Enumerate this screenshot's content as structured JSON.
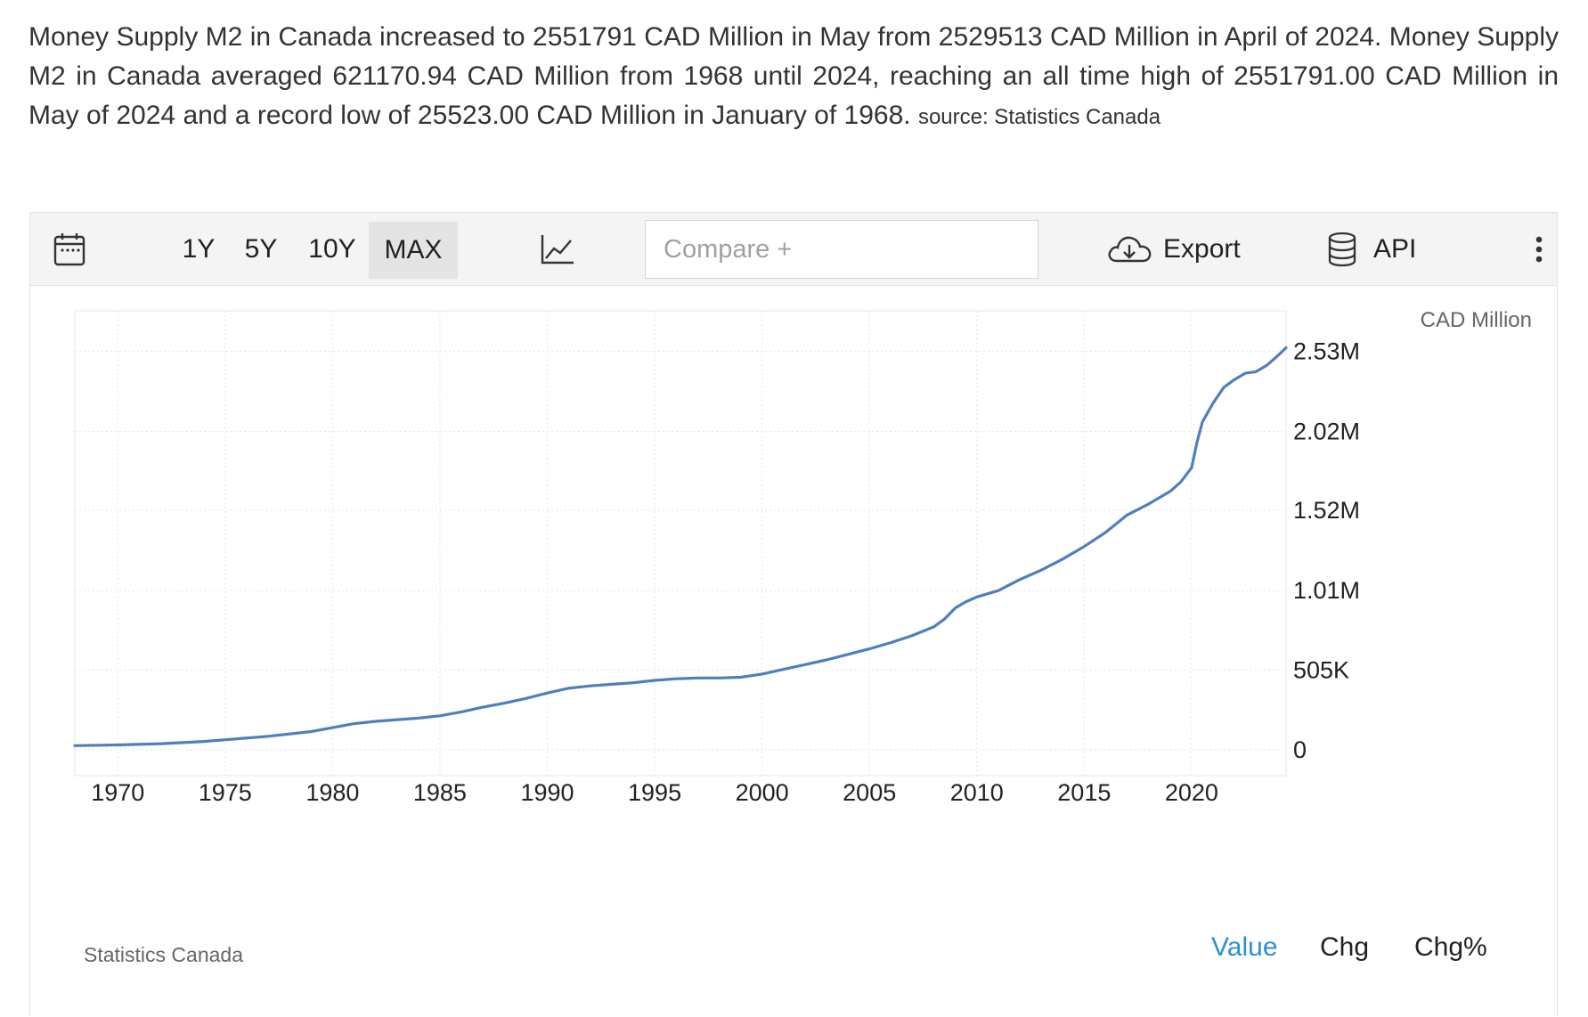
{
  "description": {
    "main": "Money Supply M2 in Canada increased to 2551791 CAD Million in May from 2529513 CAD Million in April of 2024. Money Supply M2 in Canada averaged 621170.94 CAD Million from 1968 until 2024, reaching an all time high of 2551791.00 CAD Million in May of 2024 and a record low of 25523.00 CAD Million in January of 1968.",
    "source": "source: Statistics Canada"
  },
  "toolbar": {
    "calendar_icon": "calendar-icon",
    "ranges": [
      "1Y",
      "5Y",
      "10Y",
      "MAX"
    ],
    "active_range": "MAX",
    "chart_type_icon": "line-chart-icon",
    "compare_placeholder": "Compare +",
    "export_label": "Export",
    "export_icon": "cloud-download-icon",
    "api_label": "API",
    "api_icon": "database-icon",
    "more_icon": "more-vertical-icon"
  },
  "footer": {
    "source": "Statistics Canada",
    "tabs": [
      "Value",
      "Chg",
      "Chg%"
    ],
    "active_tab": "Value"
  },
  "colors": {
    "line": "#4f7fbd",
    "active_tab": "#2a8fd8"
  },
  "chart_data": {
    "type": "line",
    "title": "",
    "unit_label": "CAD Million",
    "xlabel": "",
    "ylabel": "",
    "x_ticks": [
      "1970",
      "1975",
      "1980",
      "1985",
      "1990",
      "1995",
      "2000",
      "2005",
      "2010",
      "2015",
      "2020"
    ],
    "y_ticks": [
      "0",
      "505K",
      "1.01M",
      "1.52M",
      "2.02M",
      "2.53M"
    ],
    "y_tick_values": [
      0,
      505000,
      1010000,
      1520000,
      2020000,
      2530000
    ],
    "ylim": [
      -165000,
      2730000
    ],
    "xlim": [
      1968.0,
      2024.4
    ],
    "grid": true,
    "series": [
      {
        "name": "",
        "x": [
          1968.0,
          1970.0,
          1972.0,
          1974.0,
          1975.0,
          1977.0,
          1979.0,
          1980.0,
          1981.0,
          1982.0,
          1984.0,
          1985.0,
          1986.0,
          1987.0,
          1988.0,
          1989.0,
          1990.0,
          1991.0,
          1992.0,
          1993.0,
          1994.0,
          1995.0,
          1996.0,
          1997.0,
          1998.0,
          1999.0,
          2000.0,
          2001.0,
          2002.0,
          2003.0,
          2004.0,
          2005.0,
          2006.0,
          2007.0,
          2008.0,
          2008.5,
          2009.0,
          2009.5,
          2010.0,
          2011.0,
          2012.0,
          2013.0,
          2014.0,
          2015.0,
          2016.0,
          2017.0,
          2018.0,
          2019.0,
          2019.5,
          2020.0,
          2020.25,
          2020.5,
          2021.0,
          2021.5,
          2022.0,
          2022.5,
          2023.0,
          2023.5,
          2024.0,
          2024.4
        ],
        "y": [
          25523,
          30000,
          38000,
          52000,
          63000,
          85000,
          115000,
          140000,
          165000,
          180000,
          200000,
          215000,
          240000,
          270000,
          295000,
          325000,
          360000,
          390000,
          405000,
          415000,
          425000,
          440000,
          450000,
          455000,
          455000,
          460000,
          480000,
          510000,
          540000,
          570000,
          605000,
          640000,
          680000,
          725000,
          780000,
          830000,
          900000,
          940000,
          970000,
          1010000,
          1080000,
          1140000,
          1210000,
          1290000,
          1380000,
          1490000,
          1560000,
          1640000,
          1700000,
          1790000,
          1950000,
          2080000,
          2200000,
          2300000,
          2350000,
          2390000,
          2400000,
          2440000,
          2500000,
          2551791
        ]
      }
    ]
  }
}
